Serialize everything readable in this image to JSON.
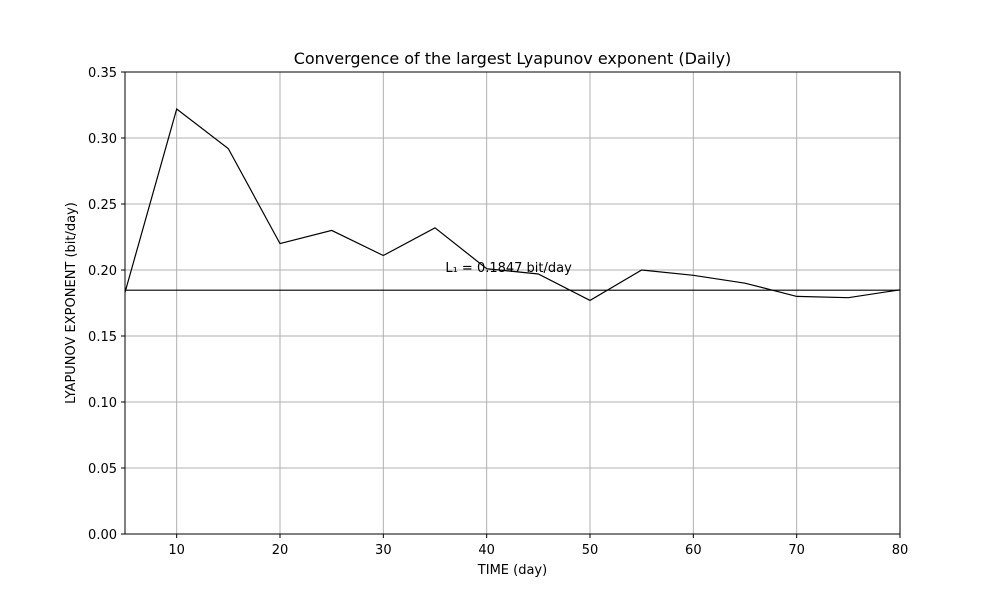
{
  "chart_data": {
    "type": "line",
    "title": "Convergence of the largest Lyapunov exponent (Daily)",
    "xlabel": "TIME (day)",
    "ylabel": "LYAPUNOV EXPONENT (bit/day)",
    "xlim": [
      5,
      80
    ],
    "ylim": [
      0,
      0.35
    ],
    "xticks": [
      10,
      20,
      30,
      40,
      50,
      60,
      70,
      80
    ],
    "yticks": [
      0.0,
      0.05,
      0.1,
      0.15,
      0.2,
      0.25,
      0.3,
      0.35
    ],
    "xtick_labels": [
      "10",
      "20",
      "30",
      "40",
      "50",
      "60",
      "70",
      "80"
    ],
    "ytick_labels": [
      "0.00",
      "0.05",
      "0.10",
      "0.15",
      "0.20",
      "0.25",
      "0.30",
      "0.35"
    ],
    "grid": true,
    "line_color": "#000000",
    "grid_color": "#b0b0b0",
    "series": [
      {
        "x": [
          5,
          10,
          15,
          20,
          25,
          30,
          35,
          40,
          45,
          50,
          55,
          60,
          65,
          70,
          75,
          80
        ],
        "y": [
          0.183,
          0.322,
          0.292,
          0.22,
          0.23,
          0.211,
          0.232,
          0.201,
          0.197,
          0.177,
          0.2,
          0.196,
          0.19,
          0.18,
          0.179,
          0.185
        ]
      }
    ],
    "reference_line": {
      "y": 0.1847
    },
    "annotation": {
      "text": "L₁ = 0.1847 bit/day",
      "x": 36,
      "y": 0.1985
    }
  }
}
